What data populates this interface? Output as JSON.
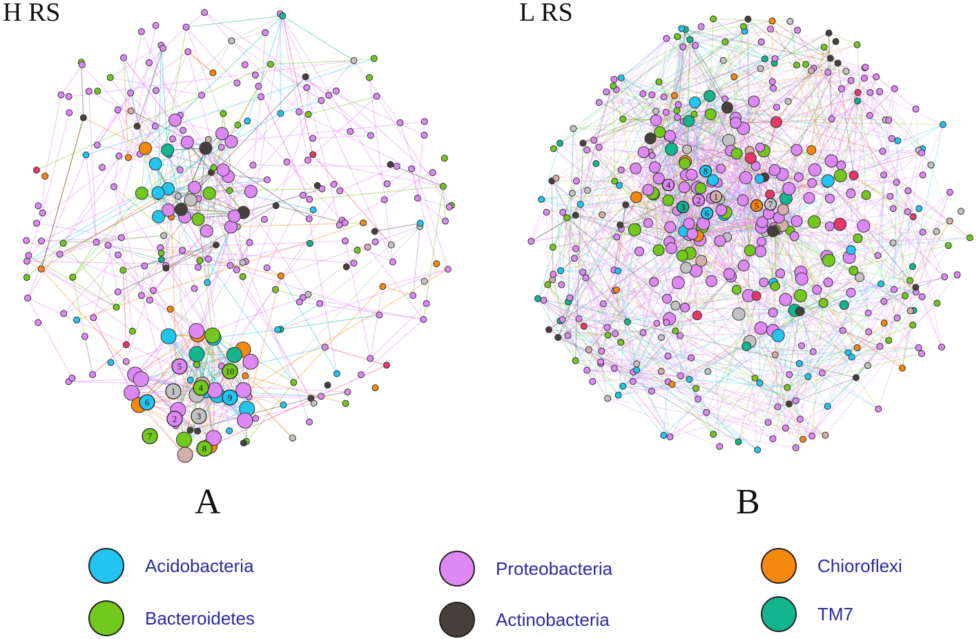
{
  "panels": [
    {
      "title": "H RS",
      "letter": "A",
      "seed": 7,
      "layout": "two-cluster",
      "numbered_nodes": [
        "1",
        "2",
        "3",
        "4",
        "5",
        "6",
        "7",
        "8",
        "9",
        "10"
      ]
    },
    {
      "title": "L RS",
      "letter": "B",
      "seed": 13,
      "layout": "dense",
      "numbered_nodes": [
        "1",
        "2",
        "3",
        "4",
        "5",
        "6",
        "7",
        "8"
      ]
    }
  ],
  "legend": [
    {
      "label": "Acidobacteria",
      "color": "#22c4f0"
    },
    {
      "label": "Bacteroidetes",
      "color": "#72c81c"
    },
    {
      "label": "Proteobacteria",
      "color": "#dd88f5"
    },
    {
      "label": "Actinobacteria",
      "color": "#45403c"
    },
    {
      "label": "Chioroflexi",
      "color": "#f5880f"
    },
    {
      "label": "TM7",
      "color": "#13b58e"
    }
  ],
  "extra_colors": {
    "gray": "#c2c2c2",
    "pink": "#d4aeaa",
    "red": "#e4386a"
  }
}
